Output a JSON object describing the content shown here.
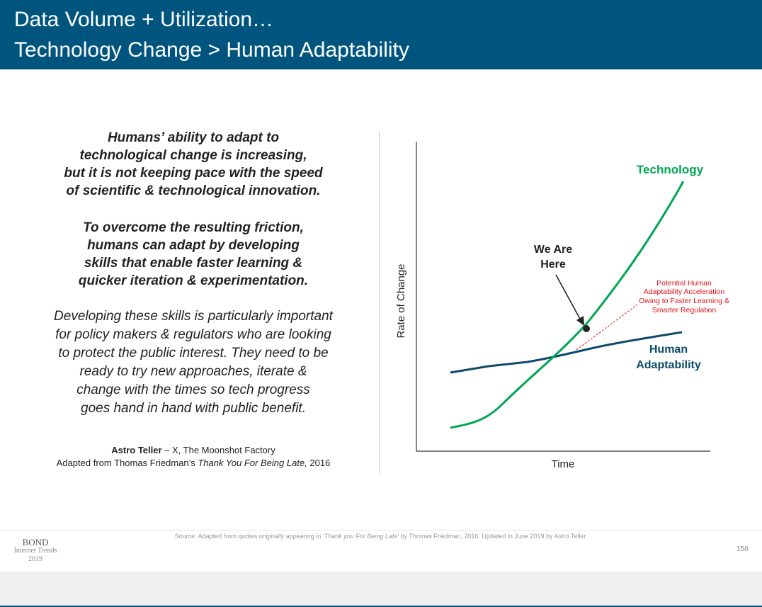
{
  "header": {
    "title_line1": "Data Volume + Utilization…",
    "title_line2": "Technology Change > Human Adaptability"
  },
  "quote": {
    "para1": [
      "Humans’ ability to adapt to",
      "technological change is increasing,",
      "but it is not keeping pace with the speed",
      "of scientific & technological innovation."
    ],
    "para2": [
      "To overcome the resulting friction,",
      "humans can adapt by developing",
      "skills that enable faster learning &",
      "quicker iteration & experimentation."
    ],
    "para3": [
      "Developing these skills is particularly important",
      "for policy makers & regulators who are looking",
      "to protect the public interest. They need to be",
      "ready to try new approaches, iterate &",
      "change with the times so tech progress",
      "goes hand in hand with public benefit."
    ]
  },
  "attribution": {
    "name": "Astro Teller",
    "affiliation": " – X, The Moonshot Factory",
    "adapted_prefix": "Adapted from Thomas Friedman’s ",
    "book": "Thank You For Being Late,",
    "year": " 2016"
  },
  "chart_data": {
    "type": "line",
    "title": "",
    "xlabel": "Time",
    "ylabel": "Rate of Change",
    "series": [
      {
        "name": "Technology",
        "color": "#00a651",
        "shape": "exponential"
      },
      {
        "name": "Human Adaptability",
        "color": "#0d4a6b",
        "shape": "linear"
      }
    ],
    "annotations": {
      "we_are_here": [
        "We Are",
        "Here"
      ],
      "potential": [
        "Potential Human",
        "Adaptability Acceleration",
        "Owing to Faster Learning &",
        "Smarter Regulation"
      ],
      "human_label": [
        "Human",
        "Adaptability"
      ]
    },
    "colors": {
      "tech": "#00a651",
      "human": "#0d4a6b",
      "potential": "#e0121b",
      "axis": "#333333",
      "label": "#222222"
    }
  },
  "footer": {
    "source_prefix": "Source: Adapted from quotes originally appearing in ‘",
    "source_title": "Thank you For Being Late",
    "source_suffix": "’ by Thomas Friedman, 2016.  Updated in June 2019 by Astro Teller.",
    "brand1": "BOND",
    "brand2": "Internet Trends",
    "brand3": "2019",
    "page": "156"
  }
}
